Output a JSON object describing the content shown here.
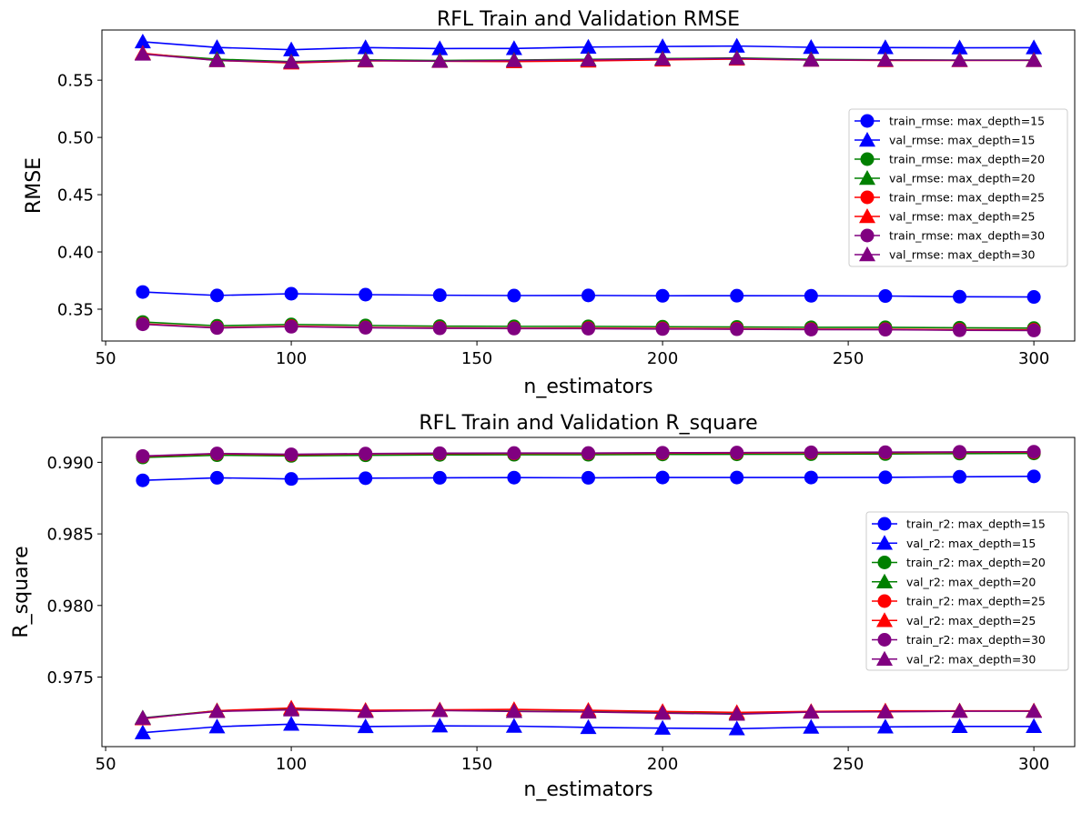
{
  "chart_data": [
    {
      "type": "line",
      "title": "RFL Train and Validation RMSE",
      "xlabel": "n_estimators",
      "ylabel": "RMSE",
      "xlim": [
        49,
        311
      ],
      "ylim": [
        0.3222,
        0.5938
      ],
      "xticks": [
        50,
        100,
        150,
        200,
        250,
        300
      ],
      "xtick_labels": [
        "50",
        "100",
        "150",
        "200",
        "250",
        "300"
      ],
      "yticks": [
        0.35,
        0.4,
        0.45,
        0.5,
        0.55
      ],
      "ytick_labels": [
        "0.35",
        "0.40",
        "0.45",
        "0.50",
        "0.55"
      ],
      "legend_position": "center-right",
      "x": [
        60,
        80,
        100,
        120,
        140,
        160,
        180,
        200,
        220,
        240,
        260,
        280,
        300
      ],
      "series": [
        {
          "name": "train_rmse: max_depth=15",
          "color": "#0000ff",
          "marker": "circle",
          "values": [
            0.365,
            0.362,
            0.3635,
            0.3627,
            0.3622,
            0.3619,
            0.362,
            0.3617,
            0.3618,
            0.3617,
            0.3615,
            0.3609,
            0.3607
          ]
        },
        {
          "name": "val_rmse: max_depth=15",
          "color": "#0000ff",
          "marker": "triangle",
          "values": [
            0.5835,
            0.5786,
            0.5766,
            0.5785,
            0.5776,
            0.5777,
            0.5789,
            0.5794,
            0.5798,
            0.5787,
            0.5785,
            0.5783,
            0.5784
          ]
        },
        {
          "name": "train_rmse: max_depth=20",
          "color": "#008000",
          "marker": "circle",
          "values": [
            0.3388,
            0.3355,
            0.3367,
            0.3358,
            0.3352,
            0.335,
            0.335,
            0.3347,
            0.3345,
            0.3342,
            0.3342,
            0.3338,
            0.3335
          ]
        },
        {
          "name": "val_rmse: max_depth=20",
          "color": "#008000",
          "marker": "triangle",
          "values": [
            0.573,
            0.5683,
            0.5662,
            0.5678,
            0.5672,
            0.5676,
            0.5682,
            0.5688,
            0.5694,
            0.5682,
            0.5678,
            0.5676,
            0.5676
          ]
        },
        {
          "name": "train_rmse: max_depth=25",
          "color": "#ff0000",
          "marker": "circle",
          "values": [
            0.3372,
            0.3339,
            0.3352,
            0.3341,
            0.3337,
            0.3334,
            0.3335,
            0.3332,
            0.333,
            0.3326,
            0.3325,
            0.3321,
            0.332
          ]
        },
        {
          "name": "val_rmse: max_depth=25",
          "color": "#ff0000",
          "marker": "triangle",
          "values": [
            0.5735,
            0.5672,
            0.5651,
            0.5669,
            0.5665,
            0.5662,
            0.5668,
            0.5677,
            0.5684,
            0.5676,
            0.5672,
            0.5672,
            0.5673
          ]
        },
        {
          "name": "train_rmse: max_depth=30",
          "color": "#800080",
          "marker": "circle",
          "values": [
            0.3368,
            0.3336,
            0.3347,
            0.3338,
            0.3333,
            0.3331,
            0.333,
            0.3327,
            0.3325,
            0.3322,
            0.3321,
            0.3316,
            0.3314
          ]
        },
        {
          "name": "val_rmse: max_depth=30",
          "color": "#800080",
          "marker": "triangle",
          "values": [
            0.5728,
            0.5672,
            0.5658,
            0.5672,
            0.5666,
            0.5672,
            0.5678,
            0.5684,
            0.569,
            0.5676,
            0.5676,
            0.5674,
            0.5673
          ]
        }
      ]
    },
    {
      "type": "line",
      "title": "RFL Train and Validation R_square",
      "xlabel": "n_estimators",
      "ylabel": "R_square",
      "xlim": [
        49,
        311
      ],
      "ylim": [
        0.97014,
        0.99174
      ],
      "xticks": [
        50,
        100,
        150,
        200,
        250,
        300
      ],
      "xtick_labels": [
        "50",
        "100",
        "150",
        "200",
        "250",
        "300"
      ],
      "yticks": [
        0.975,
        0.98,
        0.985,
        0.99
      ],
      "ytick_labels": [
        "0.975",
        "0.980",
        "0.985",
        "0.990"
      ],
      "legend_position": "center-right",
      "x": [
        60,
        80,
        100,
        120,
        140,
        160,
        180,
        200,
        220,
        240,
        260,
        280,
        300
      ],
      "series": [
        {
          "name": "train_r2: max_depth=15",
          "color": "#0000ff",
          "marker": "circle",
          "values": [
            0.98874,
            0.98892,
            0.98884,
            0.98889,
            0.98892,
            0.98893,
            0.98892,
            0.98894,
            0.98894,
            0.98894,
            0.98895,
            0.98899,
            0.98902
          ]
        },
        {
          "name": "val_r2: max_depth=15",
          "color": "#0000ff",
          "marker": "triangle",
          "values": [
            0.97111,
            0.97153,
            0.97171,
            0.97154,
            0.97159,
            0.97157,
            0.97148,
            0.97143,
            0.97139,
            0.9715,
            0.97152,
            0.97155,
            0.97155
          ]
        },
        {
          "name": "train_r2: max_depth=20",
          "color": "#008000",
          "marker": "circle",
          "values": [
            0.99034,
            0.9905,
            0.99045,
            0.99049,
            0.99052,
            0.99053,
            0.99053,
            0.99055,
            0.99056,
            0.99057,
            0.99058,
            0.99061,
            0.99062
          ]
        },
        {
          "name": "val_r2: max_depth=20",
          "color": "#008000",
          "marker": "triangle",
          "values": [
            0.97215,
            0.97265,
            0.97277,
            0.97265,
            0.97268,
            0.97262,
            0.97258,
            0.97252,
            0.97245,
            0.97258,
            0.97261,
            0.97263,
            0.97263
          ]
        },
        {
          "name": "train_r2: max_depth=25",
          "color": "#ff0000",
          "marker": "circle",
          "values": [
            0.99042,
            0.9906,
            0.99053,
            0.99059,
            0.99061,
            0.99062,
            0.99062,
            0.99064,
            0.99065,
            0.99067,
            0.99068,
            0.9907,
            0.99071
          ]
        },
        {
          "name": "val_r2: max_depth=25",
          "color": "#ff0000",
          "marker": "triangle",
          "values": [
            0.97209,
            0.97265,
            0.97284,
            0.97268,
            0.97271,
            0.97274,
            0.97268,
            0.9726,
            0.97253,
            0.9726,
            0.97264,
            0.97264,
            0.97264
          ]
        },
        {
          "name": "train_r2: max_depth=30",
          "color": "#800080",
          "marker": "circle",
          "values": [
            0.99044,
            0.99062,
            0.99056,
            0.99061,
            0.99064,
            0.99065,
            0.99065,
            0.99067,
            0.99068,
            0.9907,
            0.99071,
            0.99073,
            0.99074
          ]
        },
        {
          "name": "val_r2: max_depth=30",
          "color": "#800080",
          "marker": "triangle",
          "values": [
            0.97213,
            0.9726,
            0.97271,
            0.9726,
            0.97266,
            0.9726,
            0.97256,
            0.97248,
            0.97241,
            0.97255,
            0.97257,
            0.97261,
            0.97261
          ]
        }
      ]
    }
  ]
}
